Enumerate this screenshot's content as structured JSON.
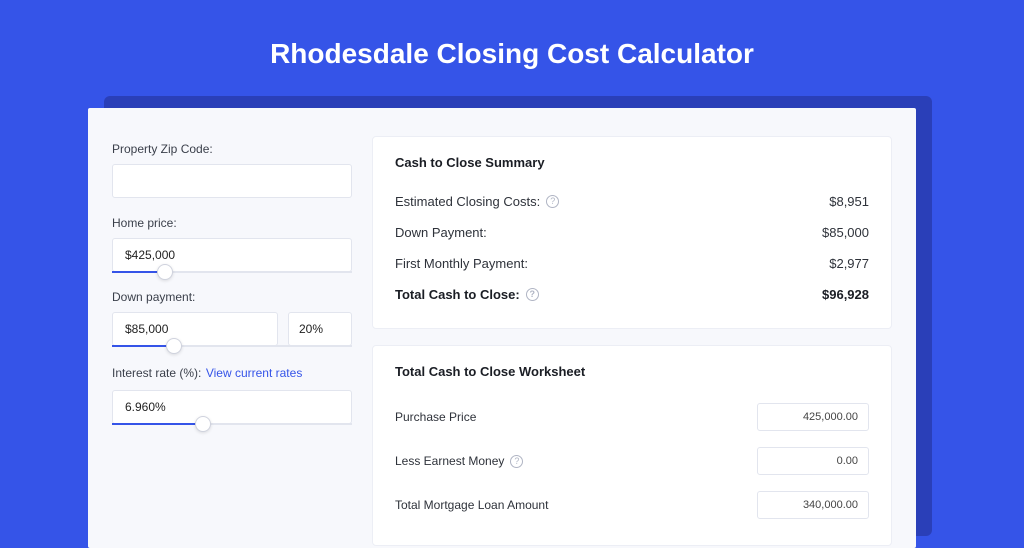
{
  "page": {
    "title": "Rhodesdale Closing Cost Calculator",
    "background_color": "#3554e8",
    "shadow_color": "#2a3fb8",
    "card_background": "#f7f8fc",
    "panel_background": "#ffffff",
    "border_color": "#e2e5ee",
    "text_color": "#2e323a",
    "title_color": "#ffffff",
    "link_color": "#3554e8"
  },
  "inputs": {
    "zip": {
      "label": "Property Zip Code:",
      "value": ""
    },
    "home_price": {
      "label": "Home price:",
      "value": "$425,000",
      "slider_pct": 22
    },
    "down_payment": {
      "label": "Down payment:",
      "value": "$85,000",
      "pct": "20%",
      "slider_pct": 26
    },
    "interest_rate": {
      "label": "Interest rate (%):",
      "link_text": "View current rates",
      "value": "6.960%",
      "slider_pct": 38
    }
  },
  "summary": {
    "title": "Cash to Close Summary",
    "rows": [
      {
        "label": "Estimated Closing Costs:",
        "value": "$8,951",
        "help": true,
        "bold": false
      },
      {
        "label": "Down Payment:",
        "value": "$85,000",
        "help": false,
        "bold": false
      },
      {
        "label": "First Monthly Payment:",
        "value": "$2,977",
        "help": false,
        "bold": false
      },
      {
        "label": "Total Cash to Close:",
        "value": "$96,928",
        "help": true,
        "bold": true
      }
    ]
  },
  "worksheet": {
    "title": "Total Cash to Close Worksheet",
    "rows": [
      {
        "label": "Purchase Price",
        "value": "425,000.00",
        "help": false
      },
      {
        "label": "Less Earnest Money",
        "value": "0.00",
        "help": true
      },
      {
        "label": "Total Mortgage Loan Amount",
        "value": "340,000.00",
        "help": false
      }
    ]
  }
}
